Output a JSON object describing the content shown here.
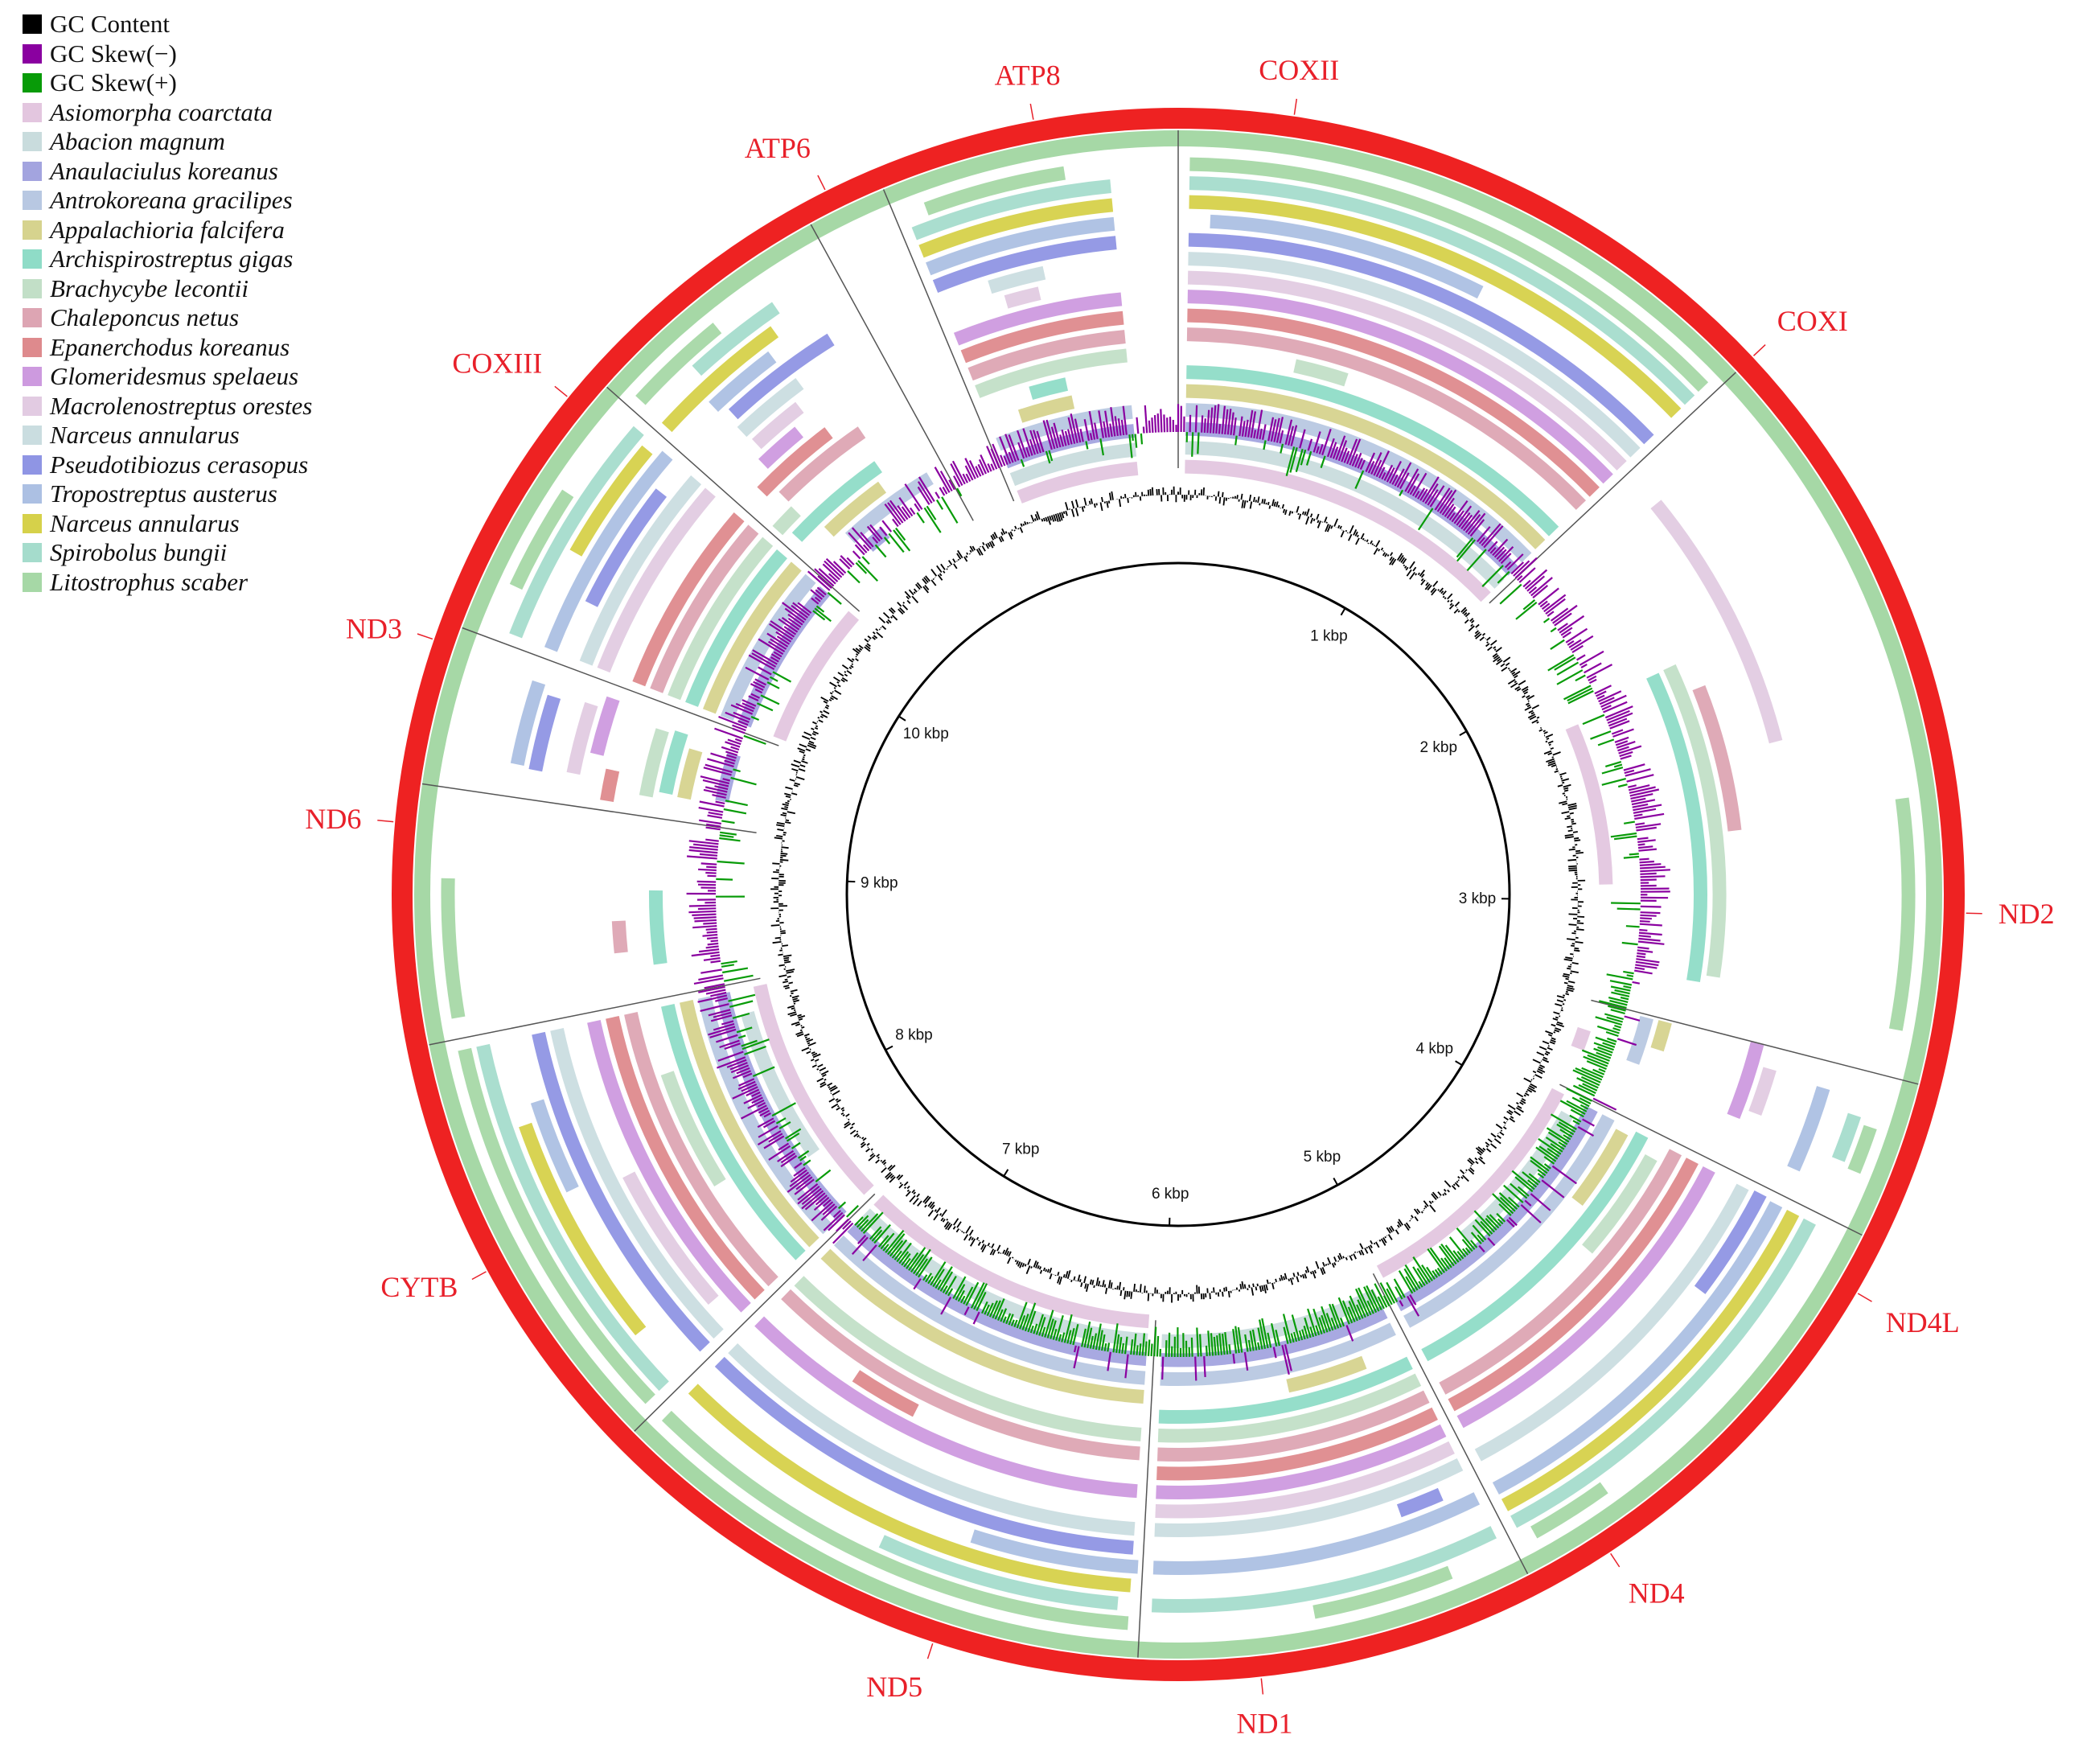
{
  "legend": {
    "items": [
      {
        "label": "GC Content",
        "color": "#000000",
        "italic": false
      },
      {
        "label": "GC Skew(−)",
        "color": "#8a00a0",
        "italic": false
      },
      {
        "label": "GC Skew(+)",
        "color": "#089b08",
        "italic": false
      },
      {
        "label": "Asiomorpha coarctata",
        "color": "#e3c6df",
        "italic": true
      },
      {
        "label": "Abacion magnum",
        "color": "#c9dcdd",
        "italic": true
      },
      {
        "label": "Anaulaciulus koreanus",
        "color": "#a3a4df",
        "italic": true
      },
      {
        "label": "Antrokoreana gracilipes",
        "color": "#b8c8e2",
        "italic": true
      },
      {
        "label": "Appalachioria falcifera",
        "color": "#d6d38e",
        "italic": true
      },
      {
        "label": "Archispirostreptus gigas",
        "color": "#8fdcc7",
        "italic": true
      },
      {
        "label": "Brachycybe lecontii",
        "color": "#c2dfc7",
        "italic": true
      },
      {
        "label": "Chaleponcus netus",
        "color": "#dda5b3",
        "italic": true
      },
      {
        "label": "Epanerchodus koreanus",
        "color": "#de8a8d",
        "italic": true
      },
      {
        "label": "Glomeridesmus spelaeus",
        "color": "#cd9adf",
        "italic": true
      },
      {
        "label": "Macrolenostreptus orestes",
        "color": "#e2cbe2",
        "italic": true
      },
      {
        "label": "Narceus annularus",
        "color": "#cadde0",
        "italic": true
      },
      {
        "label": "Pseudotibiozus cerasopus",
        "color": "#8f95e4",
        "italic": true
      },
      {
        "label": "Tropostreptus austerus",
        "color": "#acc0e3",
        "italic": true
      },
      {
        "label": "Narceus annularus",
        "color": "#d6d14a",
        "italic": true
      },
      {
        "label": "Spirobolus bungii",
        "color": "#a5dccc",
        "italic": true
      },
      {
        "label": "Litostrophus scaber",
        "color": "#a6d8a6",
        "italic": true
      }
    ]
  },
  "genes": [
    {
      "name": "COXI",
      "start_kbp": 0.0,
      "end_kbp": 1.55
    },
    {
      "name": "ND2",
      "start_kbp": 1.55,
      "end_kbp": 3.45
    },
    {
      "name": "ND4L",
      "start_kbp": 3.45,
      "end_kbp": 3.85
    },
    {
      "name": "ND4",
      "start_kbp": 3.85,
      "end_kbp": 5.05
    },
    {
      "name": "ND1",
      "start_kbp": 5.05,
      "end_kbp": 6.05
    },
    {
      "name": "ND5",
      "start_kbp": 6.05,
      "end_kbp": 7.45
    },
    {
      "name": "CYTB",
      "start_kbp": 7.45,
      "end_kbp": 8.55
    },
    {
      "name": "ND6",
      "start_kbp": 8.55,
      "end_kbp": 9.2
    },
    {
      "name": "ND3",
      "start_kbp": 9.2,
      "end_kbp": 9.6
    },
    {
      "name": "COXIII",
      "start_kbp": 9.6,
      "end_kbp": 10.3
    },
    {
      "name": "ATP6",
      "start_kbp": 10.3,
      "end_kbp": 10.95
    },
    {
      "name": "ATP8",
      "start_kbp": 10.95,
      "end_kbp": 11.15
    },
    {
      "name": "COXII",
      "start_kbp": 11.15,
      "end_kbp": 11.75
    }
  ],
  "gene_label_positions_kbp": {
    "ATP8": 11.55,
    "COXII": 0.28,
    "COXI": 1.55,
    "ND2": 3.02,
    "ND4L": 3.98,
    "ND4": 4.85,
    "ND1": 5.75,
    "ND5": 6.55,
    "CYTB": 7.98,
    "ND6": 9.1,
    "ND3": 9.55,
    "COXIII": 10.22,
    "ATP6": 11.02
  },
  "kbp_ticks": [
    "1 kbp",
    "2 kbp",
    "3 kbp",
    "4 kbp",
    "5 kbp",
    "6 kbp",
    "7 kbp",
    "8 kbp",
    "9 kbp",
    "10 kbp"
  ],
  "genome_length_kbp": 11.9,
  "colors": {
    "outer_ring": "#ee2222",
    "reference_ring": "#a6d8a6",
    "backbone": "#000000",
    "gene_label": "#e8202a",
    "gc_content": "#000000",
    "gc_skew_minus": "#8a00a0",
    "gc_skew_plus": "#089b08"
  },
  "gc_skew_plus_region_kbp": [
    3.3,
    7.4
  ]
}
